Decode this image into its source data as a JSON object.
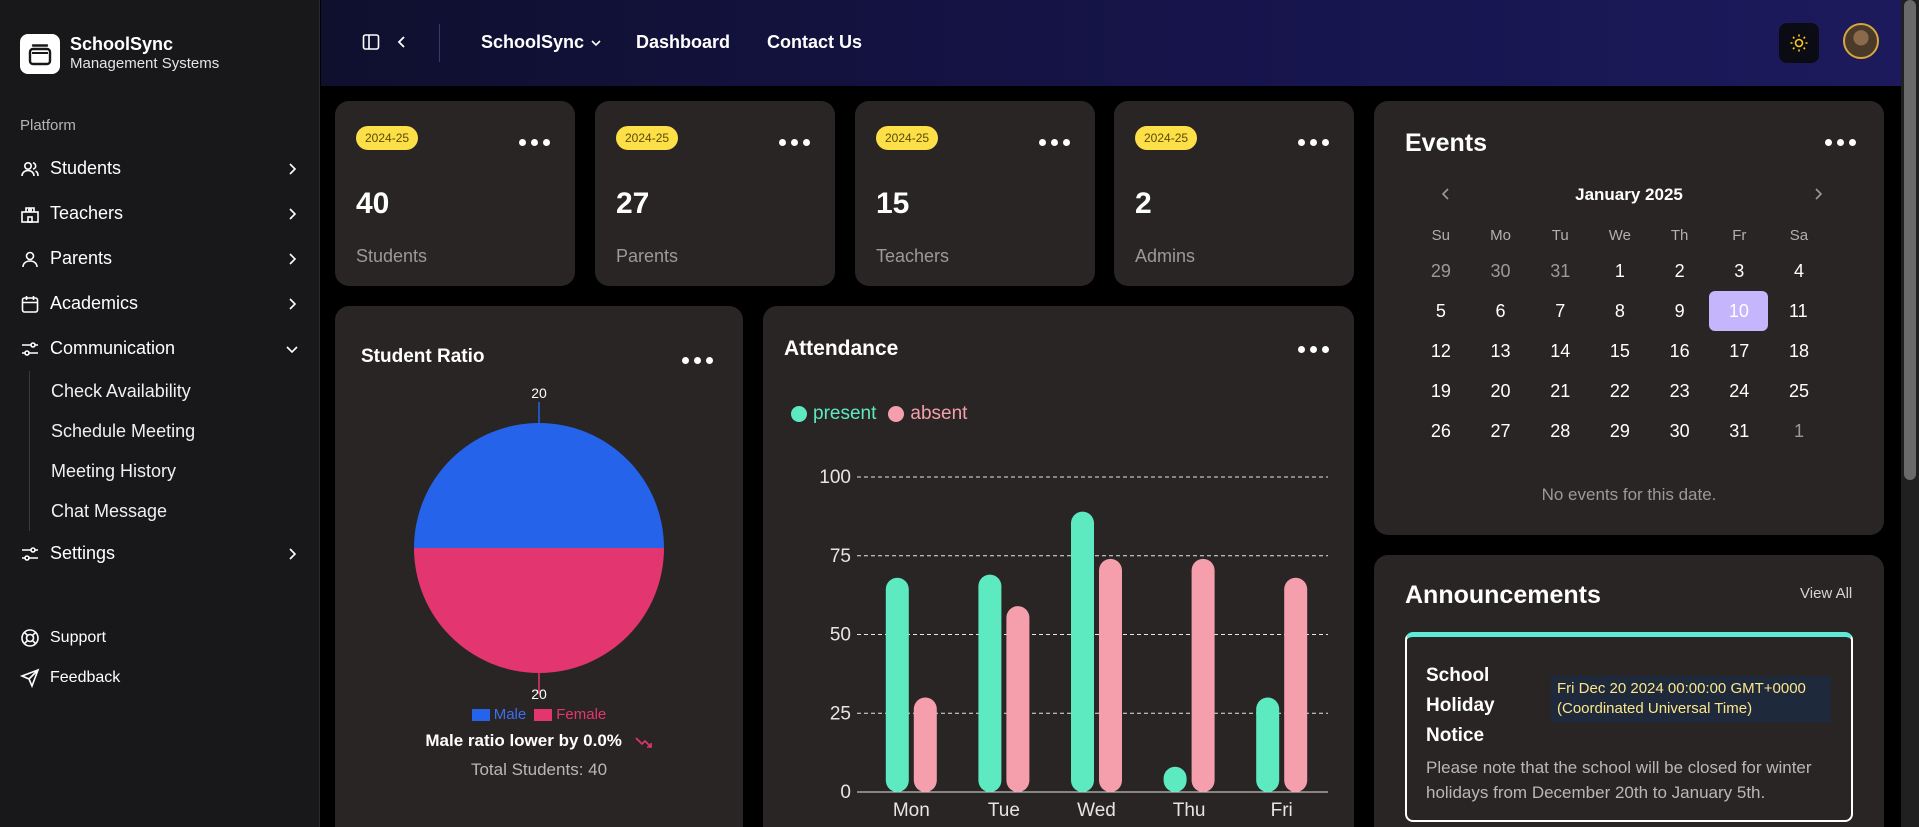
{
  "brand": {
    "name": "SchoolSync",
    "subtitle": "Management Systems"
  },
  "sidebar": {
    "section_label": "Platform",
    "items": [
      {
        "label": "Students",
        "icon": "users-icon"
      },
      {
        "label": "Teachers",
        "icon": "school-icon"
      },
      {
        "label": "Parents",
        "icon": "user-icon"
      },
      {
        "label": "Academics",
        "icon": "calendar-icon"
      },
      {
        "label": "Communication",
        "icon": "sliders-icon",
        "expanded": true
      }
    ],
    "communication_sub": [
      "Check Availability",
      "Schedule Meeting",
      "Meeting History",
      "Chat Message"
    ],
    "settings": {
      "label": "Settings",
      "icon": "sliders-icon"
    },
    "bottom": [
      {
        "label": "Support",
        "icon": "lifebuoy-icon"
      },
      {
        "label": "Feedback",
        "icon": "send-icon"
      }
    ]
  },
  "header": {
    "app_switcher": "SchoolSync",
    "links": [
      "Dashboard",
      "Contact Us"
    ]
  },
  "stats": [
    {
      "badge": "2024-25",
      "value": "40",
      "label": "Students"
    },
    {
      "badge": "2024-25",
      "value": "27",
      "label": "Parents"
    },
    {
      "badge": "2024-25",
      "value": "15",
      "label": "Teachers"
    },
    {
      "badge": "2024-25",
      "value": "2",
      "label": "Admins"
    }
  ],
  "ratio": {
    "title": "Student Ratio",
    "top_label": "20",
    "bottom_label": "20",
    "legend": [
      "Male",
      "Female"
    ],
    "summary": "Male ratio lower by 0.0%",
    "total": "Total Students: 40",
    "colors": {
      "male": "#2563eb",
      "female": "#e33670"
    }
  },
  "attendance": {
    "title": "Attendance",
    "legend": [
      "present",
      "absent"
    ],
    "colors": {
      "present": "#5eeac0",
      "absent": "#f59eac"
    }
  },
  "chart_data": [
    {
      "type": "pie",
      "title": "Student Ratio",
      "categories": [
        "Male",
        "Female"
      ],
      "values": [
        20,
        20
      ]
    },
    {
      "type": "bar",
      "title": "Attendance",
      "categories": [
        "Mon",
        "Tue",
        "Wed",
        "Thu",
        "Fri"
      ],
      "series": [
        {
          "name": "present",
          "values": [
            68,
            69,
            89,
            8,
            30
          ]
        },
        {
          "name": "absent",
          "values": [
            30,
            59,
            74,
            74,
            68
          ]
        }
      ],
      "yticks": [
        "0",
        "25",
        "50",
        "75",
        "100"
      ],
      "ylim": [
        0,
        100
      ],
      "grid": true,
      "legend": "top-left"
    }
  ],
  "events": {
    "title": "Events",
    "month": "January 2025",
    "weekdays": [
      "Su",
      "Mo",
      "Tu",
      "We",
      "Th",
      "Fr",
      "Sa"
    ],
    "weeks": [
      [
        "29",
        "30",
        "31",
        "1",
        "2",
        "3",
        "4"
      ],
      [
        "5",
        "6",
        "7",
        "8",
        "9",
        "10",
        "11"
      ],
      [
        "12",
        "13",
        "14",
        "15",
        "16",
        "17",
        "18"
      ],
      [
        "19",
        "20",
        "21",
        "22",
        "23",
        "24",
        "25"
      ],
      [
        "26",
        "27",
        "28",
        "29",
        "30",
        "31",
        "1"
      ]
    ],
    "selected": "10",
    "empty_text": "No events for this date."
  },
  "announcements": {
    "title": "Announcements",
    "view_all": "View All",
    "item": {
      "title_lines": [
        "School",
        "Holiday",
        "Notice"
      ],
      "date": "Fri Dec 20 2024 00:00:00 GMT+0000 (Coordinated Universal Time)",
      "body": "Please note that the school will be closed for winter holidays from December 20th to January 5th."
    }
  }
}
